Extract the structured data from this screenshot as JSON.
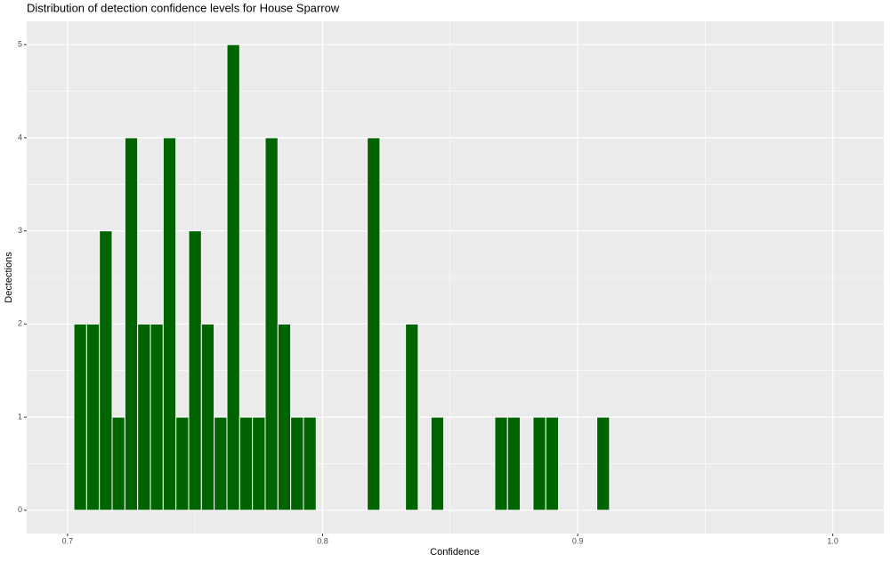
{
  "chart_data": {
    "type": "histogram",
    "title": "Distribution of detection confidence levels for House Sparrow",
    "x_label": "Confidence",
    "y_label": "Dectections",
    "bins": [
      0.7025,
      0.7075,
      0.7125,
      0.7175,
      0.7225,
      0.7275,
      0.7325,
      0.7375,
      0.7425,
      0.7475,
      0.7525,
      0.7575,
      0.7625,
      0.7675,
      0.7725,
      0.7775,
      0.7825,
      0.7875,
      0.7925,
      0.7975,
      0.8025,
      0.8075,
      0.8125,
      0.8175,
      0.8225,
      0.8275,
      0.8325,
      0.8375,
      0.8425,
      0.8475,
      0.8525,
      0.8575,
      0.8625,
      0.8675,
      0.8725,
      0.8775,
      0.8825,
      0.8875,
      0.8925,
      0.8975,
      0.9025,
      0.9075,
      0.9125
    ],
    "values": [
      2,
      2,
      3,
      1,
      4,
      2,
      2,
      4,
      1,
      3,
      2,
      1,
      5,
      1,
      1,
      4,
      2,
      1,
      1,
      0,
      0,
      0,
      0,
      4,
      0,
      0,
      2,
      0,
      1,
      0,
      0,
      0,
      0,
      1,
      1,
      0,
      1,
      1,
      0,
      0,
      0,
      1
    ],
    "color": "#006400",
    "xlim": [
      0.684,
      1.02
    ],
    "xticks": [
      0.7,
      0.8,
      0.9,
      {
        "value": 1.0,
        "label": "1.0"
      }
    ],
    "ylim": [
      -0.25,
      5.25
    ],
    "yticks": [
      0,
      1,
      2,
      3,
      4,
      5
    ],
    "grid": true
  }
}
